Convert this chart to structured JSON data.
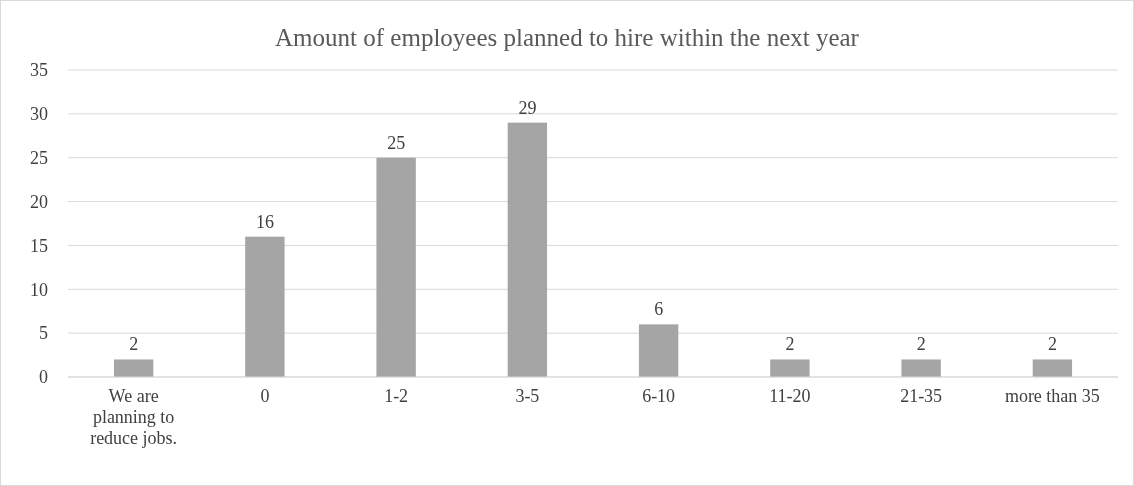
{
  "chart_data": {
    "type": "bar",
    "title": "Amount of employees planned to hire within the next year",
    "categories": [
      "We are planning to reduce jobs.",
      "0",
      "1-2",
      "3-5",
      "6-10",
      "11-20",
      "21-35",
      "more than 35"
    ],
    "values": [
      2,
      16,
      25,
      29,
      6,
      2,
      2,
      2
    ],
    "color": "#a5a5a5",
    "ylim": [
      0,
      35
    ],
    "yticks": [
      0,
      5,
      10,
      15,
      20,
      25,
      30,
      35
    ],
    "grid": "y",
    "data_labels": true
  }
}
